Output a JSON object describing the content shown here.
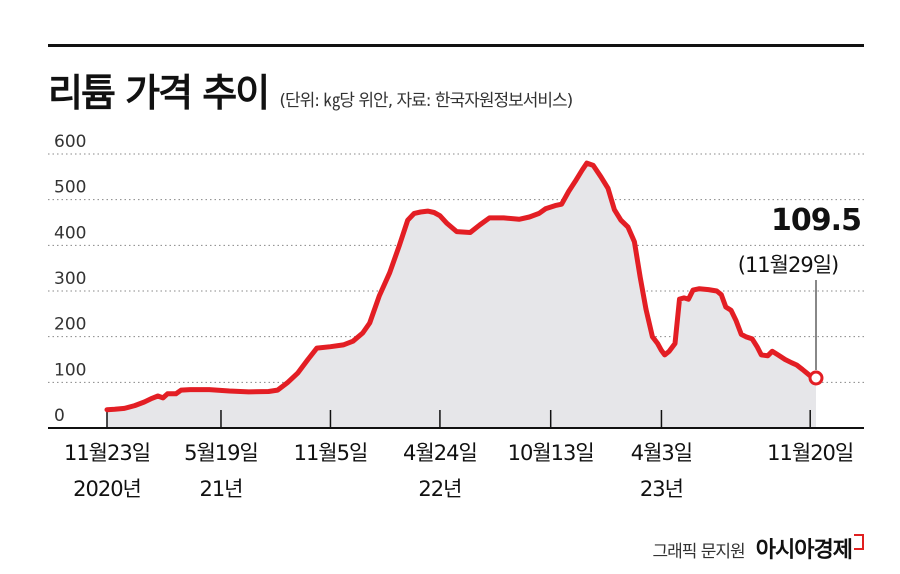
{
  "header": {
    "title": "리튬 가격 추이",
    "subtitle": "(단위: ㎏당 위안, 자료: 한국자원정보서비스)"
  },
  "footer": {
    "credit": "그래픽 문지원",
    "brand": "아시아경제"
  },
  "colors": {
    "line": "#e31e24",
    "area": "#e6e6e9",
    "grid": "#888888",
    "text": "#111111"
  },
  "chart_data": {
    "type": "area",
    "title": "리튬 가격 추이",
    "ylim": [
      0,
      600
    ],
    "yticks": [
      {
        "value": 0,
        "label": "0"
      },
      {
        "value": 100,
        "label": "100"
      },
      {
        "value": 200,
        "label": "200"
      },
      {
        "value": 300,
        "label": "300"
      },
      {
        "value": 400,
        "label": "400"
      },
      {
        "value": 500,
        "label": "500"
      },
      {
        "value": 600,
        "label": "600"
      }
    ],
    "xticks": [
      {
        "date": "2020-11-23",
        "label": "11월23일",
        "sublabel": "2020년"
      },
      {
        "date": "2021-05-19",
        "label": "5월19일",
        "sublabel": "21년"
      },
      {
        "date": "2021-11-05",
        "label": "11월5일",
        "sublabel": ""
      },
      {
        "date": "2022-04-24",
        "label": "4월24일",
        "sublabel": "22년"
      },
      {
        "date": "2022-10-13",
        "label": "10월13일",
        "sublabel": ""
      },
      {
        "date": "2023-04-03",
        "label": "4월3일",
        "sublabel": "23년"
      },
      {
        "date": "2023-11-20",
        "label": "11월20일",
        "sublabel": ""
      }
    ],
    "x_end": "2023-11-29",
    "grid": "horizontal-dotted",
    "annotation": {
      "date": "2023-11-29",
      "value_label": "109.5",
      "date_label": "(11월29일)",
      "value": 109.5
    },
    "series": [
      {
        "points": [
          [
            "2020-11-23",
            40
          ],
          [
            "2020-12-05",
            41
          ],
          [
            "2020-12-20",
            43
          ],
          [
            "2021-01-05",
            49
          ],
          [
            "2021-01-20",
            57
          ],
          [
            "2021-02-01",
            65
          ],
          [
            "2021-02-10",
            70
          ],
          [
            "2021-02-18",
            66
          ],
          [
            "2021-02-25",
            75
          ],
          [
            "2021-03-10",
            75
          ],
          [
            "2021-03-18",
            83
          ],
          [
            "2021-04-01",
            84
          ],
          [
            "2021-05-01",
            84
          ],
          [
            "2021-06-01",
            81
          ],
          [
            "2021-07-01",
            79
          ],
          [
            "2021-08-01",
            80
          ],
          [
            "2021-08-15",
            83
          ],
          [
            "2021-08-30",
            99
          ],
          [
            "2021-09-15",
            120
          ],
          [
            "2021-10-01",
            150
          ],
          [
            "2021-10-15",
            175
          ],
          [
            "2021-11-05",
            178
          ],
          [
            "2021-11-25",
            182
          ],
          [
            "2021-12-10",
            190
          ],
          [
            "2021-12-25",
            208
          ],
          [
            "2022-01-05",
            230
          ],
          [
            "2022-01-20",
            290
          ],
          [
            "2022-02-05",
            340
          ],
          [
            "2022-02-20",
            400
          ],
          [
            "2022-03-05",
            455
          ],
          [
            "2022-03-15",
            470
          ],
          [
            "2022-03-25",
            473
          ],
          [
            "2022-04-05",
            475
          ],
          [
            "2022-04-15",
            472
          ],
          [
            "2022-04-24",
            465
          ],
          [
            "2022-05-05",
            448
          ],
          [
            "2022-05-20",
            430
          ],
          [
            "2022-06-10",
            428
          ],
          [
            "2022-06-25",
            445
          ],
          [
            "2022-07-10",
            460
          ],
          [
            "2022-08-01",
            460
          ],
          [
            "2022-08-25",
            457
          ],
          [
            "2022-09-10",
            462
          ],
          [
            "2022-09-25",
            470
          ],
          [
            "2022-10-05",
            480
          ],
          [
            "2022-10-20",
            487
          ],
          [
            "2022-10-30",
            490
          ],
          [
            "2022-11-10",
            518
          ],
          [
            "2022-11-20",
            540
          ],
          [
            "2022-12-01",
            565
          ],
          [
            "2022-12-08",
            580
          ],
          [
            "2022-12-18",
            575
          ],
          [
            "2022-12-30",
            550
          ],
          [
            "2023-01-10",
            525
          ],
          [
            "2023-01-20",
            478
          ],
          [
            "2023-01-30",
            455
          ],
          [
            "2023-02-10",
            440
          ],
          [
            "2023-02-20",
            408
          ],
          [
            "2023-03-01",
            330
          ],
          [
            "2023-03-10",
            260
          ],
          [
            "2023-03-20",
            200
          ],
          [
            "2023-03-28",
            185
          ],
          [
            "2023-04-03",
            170
          ],
          [
            "2023-04-08",
            160
          ],
          [
            "2023-04-15",
            168
          ],
          [
            "2023-04-24",
            185
          ],
          [
            "2023-05-01",
            282
          ],
          [
            "2023-05-08",
            285
          ],
          [
            "2023-05-15",
            282
          ],
          [
            "2023-05-22",
            302
          ],
          [
            "2023-06-01",
            305
          ],
          [
            "2023-06-15",
            303
          ],
          [
            "2023-06-28",
            300
          ],
          [
            "2023-07-05",
            292
          ],
          [
            "2023-07-12",
            265
          ],
          [
            "2023-07-20",
            258
          ],
          [
            "2023-07-28",
            235
          ],
          [
            "2023-08-05",
            205
          ],
          [
            "2023-08-12",
            200
          ],
          [
            "2023-08-22",
            195
          ],
          [
            "2023-08-30",
            177
          ],
          [
            "2023-09-05",
            160
          ],
          [
            "2023-09-15",
            158
          ],
          [
            "2023-09-22",
            168
          ],
          [
            "2023-10-01",
            160
          ],
          [
            "2023-10-12",
            150
          ],
          [
            "2023-10-22",
            143
          ],
          [
            "2023-10-30",
            138
          ],
          [
            "2023-11-08",
            128
          ],
          [
            "2023-11-15",
            120
          ],
          [
            "2023-11-22",
            112
          ],
          [
            "2023-11-29",
            109.5
          ]
        ]
      }
    ]
  }
}
